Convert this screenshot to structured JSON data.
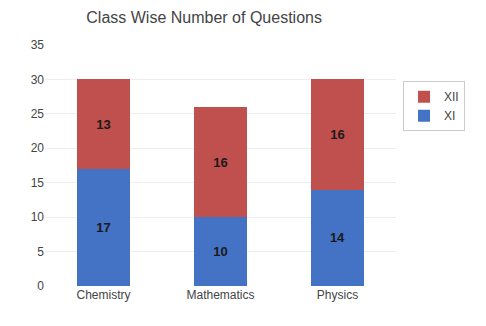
{
  "chart_data": {
    "type": "bar",
    "title": "Class Wise Number of Questions",
    "categories": [
      "Chemistry",
      "Mathematics",
      "Physics"
    ],
    "series": [
      {
        "name": "XI",
        "color": "#4472C4",
        "values": [
          17,
          10,
          14
        ]
      },
      {
        "name": "XII",
        "color": "#C0504D",
        "values": [
          13,
          16,
          16
        ]
      }
    ],
    "ylim": [
      0,
      35
    ],
    "yticks": [
      0,
      5,
      10,
      15,
      20,
      25,
      30,
      35
    ],
    "stacked": true,
    "data_labels": true,
    "grid": true,
    "legend": "right"
  }
}
